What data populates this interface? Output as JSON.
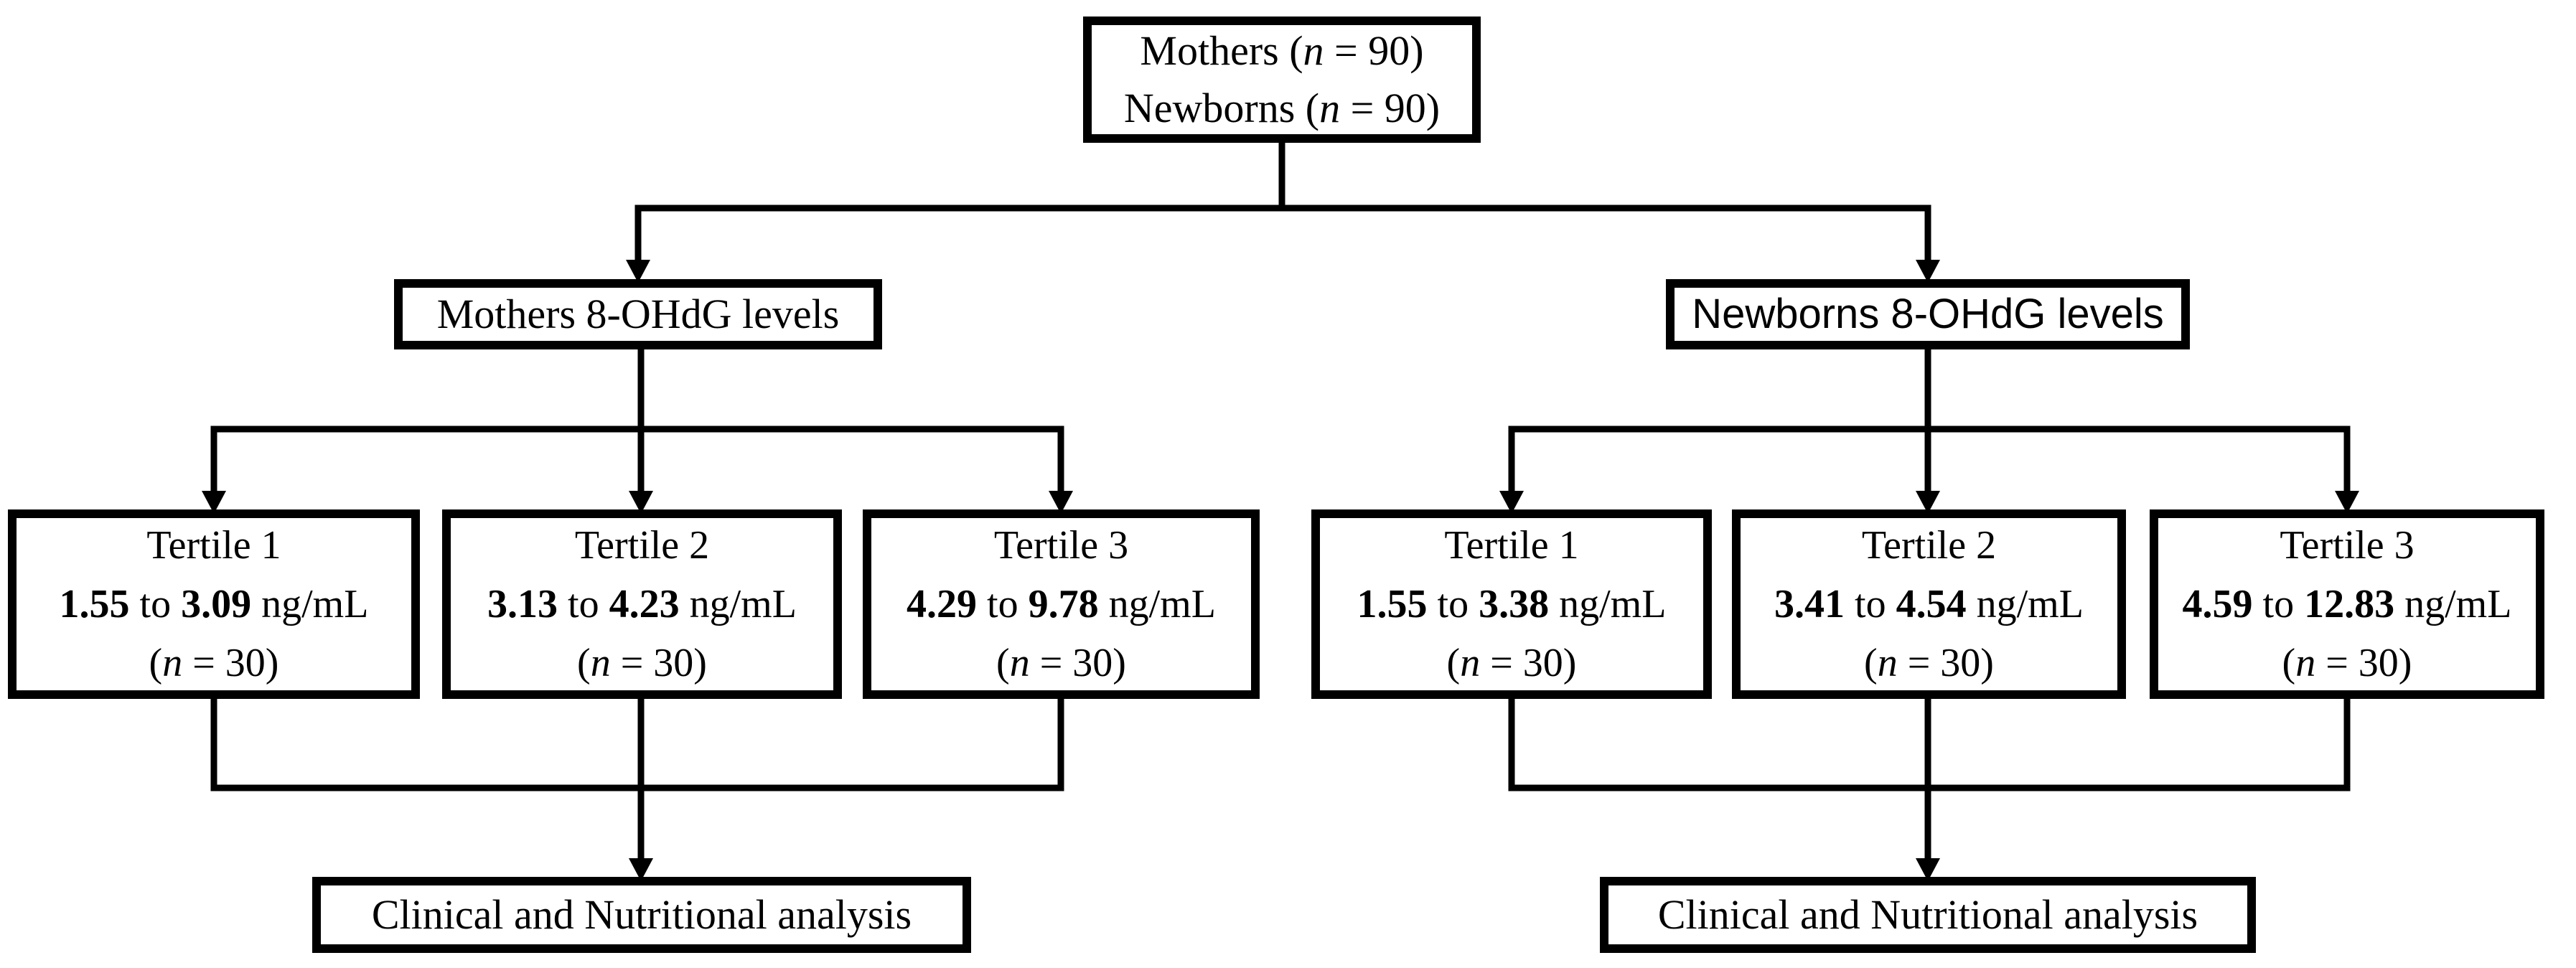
{
  "figure": {
    "background": "#ffffff",
    "line_color": "#000000",
    "box_border_color": "#000000",
    "text_color": "#000000"
  },
  "root_box": {
    "line1_html": "Mothers (<i>n</i> = 90)",
    "line2_html": "Newborns (<i>n</i> = 90)"
  },
  "branches": [
    {
      "title": "Mothers 8-OHdG levels",
      "tertiles": [
        {
          "name": "Tertile 1",
          "range_html": "<b>1.55</b> to <b>3.09</b> ng/mL",
          "count_html": "(<i>n</i> = 30)"
        },
        {
          "name": "Tertile 2",
          "range_html": "<b>3.13</b> to <b>4.23</b> ng/mL",
          "count_html": "(<i>n</i> = 30)"
        },
        {
          "name": "Tertile 3",
          "range_html": "<b>4.29</b> to <b>9.78</b> ng/mL",
          "count_html": "(<i>n</i> = 30)"
        }
      ],
      "analysis": "Clinical and Nutritional analysis"
    },
    {
      "title": "Newborns 8-OHdG levels",
      "tertiles": [
        {
          "name": "Tertile 1",
          "range_html": "<b>1.55</b> to <b>3.38</b> ng/mL",
          "count_html": "(<i>n</i> = 30)"
        },
        {
          "name": "Tertile 2",
          "range_html": "<b>3.41</b> to <b>4.54</b> ng/mL",
          "count_html": "(<i>n</i> = 30)"
        },
        {
          "name": "Tertile 3",
          "range_html": "<b>4.59</b> to <b>12.83</b> ng/mL",
          "count_html": "(<i>n</i> = 30)"
        }
      ],
      "analysis": "Clinical and Nutritional analysis"
    }
  ]
}
